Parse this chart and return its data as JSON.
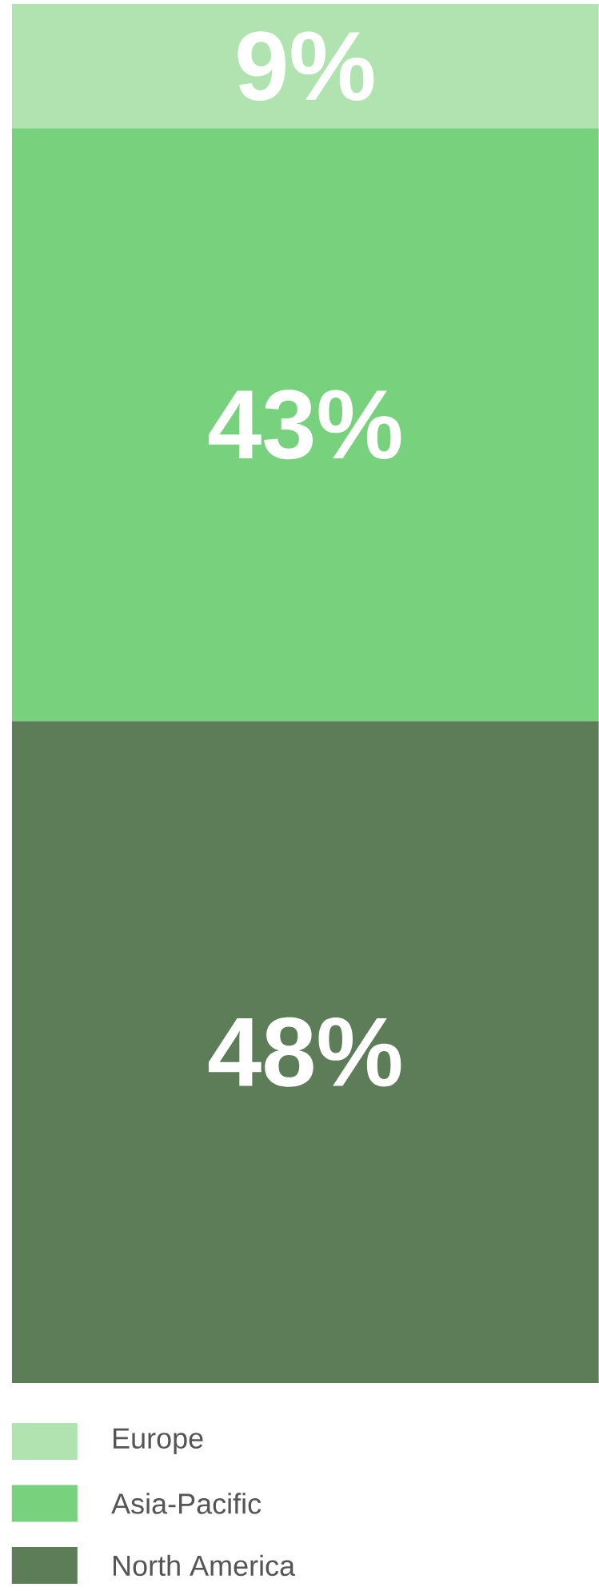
{
  "chart_data": {
    "type": "bar",
    "stacked": true,
    "categories": [
      null
    ],
    "legend": "bottom",
    "series": [
      {
        "name": "North America",
        "color": "#5c7d58",
        "values": [
          48
        ],
        "value_labels": [
          "48%"
        ]
      },
      {
        "name": "Asia-Pacific",
        "color": "#77d17d",
        "values": [
          43
        ],
        "value_labels": [
          "43%"
        ]
      },
      {
        "name": "Europe",
        "color": "#b0e3b0",
        "values": [
          9
        ],
        "value_labels": [
          "9%"
        ]
      }
    ]
  }
}
